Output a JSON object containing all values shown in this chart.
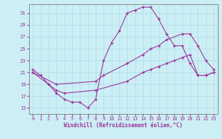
{
  "xlabel": "Windchill (Refroidissement éolien,°C)",
  "bg_color": "#cceef5",
  "grid_color": "#aadde6",
  "line_color": "#993399",
  "xlim_min": -0.5,
  "xlim_max": 23.5,
  "ylim_min": 14,
  "ylim_max": 32.5,
  "yticks": [
    15,
    17,
    19,
    21,
    23,
    25,
    27,
    29,
    31
  ],
  "xticks": [
    0,
    1,
    2,
    3,
    4,
    5,
    6,
    7,
    8,
    9,
    10,
    11,
    12,
    13,
    14,
    15,
    16,
    17,
    18,
    19,
    20,
    21,
    22,
    23
  ],
  "line1_x": [
    0,
    1,
    2,
    3,
    4,
    5,
    6,
    7,
    8,
    9,
    10,
    11,
    12,
    13,
    14,
    15,
    16,
    17,
    18,
    19,
    20,
    21,
    22,
    23
  ],
  "line1_y": [
    21.5,
    20.5,
    19.0,
    17.5,
    16.5,
    16.0,
    16.0,
    15.0,
    16.5,
    23.0,
    26.0,
    28.0,
    31.0,
    31.5,
    32.0,
    32.0,
    30.0,
    27.5,
    25.5,
    25.5,
    22.5,
    20.5,
    20.5,
    21.0
  ],
  "line2_x": [
    0,
    3,
    8,
    9,
    12,
    14,
    15,
    16,
    17,
    19,
    20,
    21,
    22,
    23
  ],
  "line2_y": [
    21.0,
    19.0,
    19.5,
    20.5,
    22.5,
    24.0,
    25.0,
    25.5,
    26.5,
    27.5,
    27.5,
    25.5,
    23.0,
    21.5
  ],
  "line3_x": [
    0,
    2,
    3,
    4,
    8,
    12,
    14,
    15,
    16,
    17,
    18,
    19,
    20,
    21,
    22,
    23
  ],
  "line3_y": [
    21.0,
    19.0,
    18.0,
    17.5,
    18.0,
    19.5,
    21.0,
    21.5,
    22.0,
    22.5,
    23.0,
    23.5,
    24.0,
    20.5,
    20.5,
    21.0
  ]
}
